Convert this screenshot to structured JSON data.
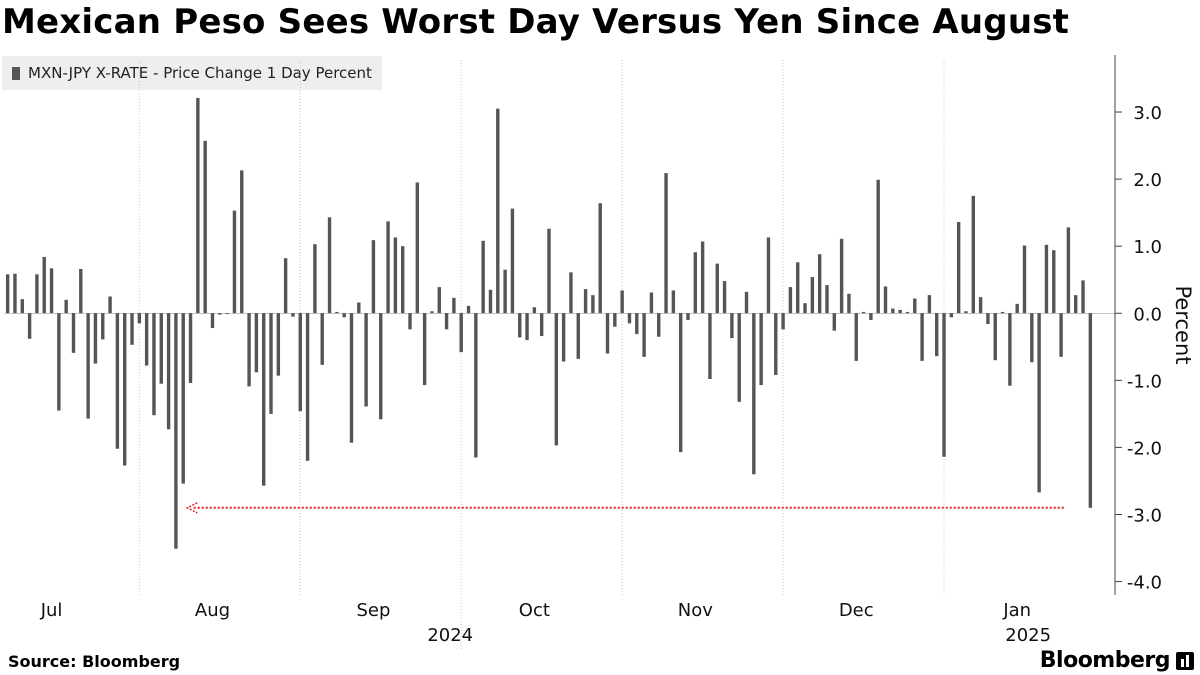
{
  "header": {
    "title": "Mexican Peso Sees Worst Day Versus Yen Since August"
  },
  "legend": {
    "label": "MXN-JPY X-RATE - Price Change 1 Day Percent"
  },
  "footer": {
    "source": "Source: Bloomberg",
    "brand": "Bloomberg"
  },
  "colors": {
    "bars": "#555555",
    "annotation": "#e02020",
    "axis": "#444444"
  },
  "chart_data": {
    "type": "bar",
    "title": "Mexican Peso Sees Worst Day Versus Yen Since August",
    "series": [
      {
        "name": "MXN-JPY X-RATE - Price Change 1 Day Percent",
        "values": [
          0.58,
          0.59,
          0.21,
          -0.38,
          0.58,
          0.84,
          0.67,
          -1.45,
          0.2,
          -0.59,
          0.66,
          -1.57,
          -0.75,
          -0.39,
          0.25,
          -2.02,
          -2.27,
          -0.47,
          -0.15,
          -0.78,
          -1.52,
          -1.05,
          -1.73,
          -3.51,
          -2.54,
          -1.04,
          3.21,
          2.57,
          -0.22,
          -0.02,
          0.0,
          1.53,
          2.13,
          -1.09,
          -0.88,
          -2.57,
          -1.5,
          -0.93,
          0.82,
          -0.05,
          -1.46,
          -2.2,
          1.03,
          -0.77,
          1.43,
          0.02,
          -0.06,
          -1.93,
          0.16,
          -1.39,
          1.09,
          -1.58,
          1.37,
          1.13,
          1.0,
          -0.24,
          1.95,
          -1.07,
          0.03,
          0.39,
          -0.24,
          0.23,
          -0.58,
          0.11,
          -2.15,
          1.08,
          0.35,
          3.05,
          0.65,
          1.56,
          -0.36,
          -0.4,
          0.09,
          -0.34,
          1.26,
          -1.97,
          -0.72,
          0.61,
          -0.68,
          0.36,
          0.27,
          1.64,
          -0.6,
          -0.2,
          0.34,
          -0.15,
          -0.31,
          -0.65,
          0.31,
          -0.35,
          2.09,
          0.34,
          -2.07,
          -0.1,
          0.91,
          1.07,
          -0.98,
          0.74,
          0.48,
          -0.37,
          -1.32,
          0.32,
          -2.4,
          -1.07,
          1.13,
          -0.92,
          -0.24,
          0.39,
          0.76,
          0.15,
          0.54,
          0.88,
          0.42,
          -0.26,
          1.11,
          0.29,
          -0.71,
          0.02,
          -0.1,
          1.99,
          0.4,
          0.07,
          0.05,
          0.02,
          0.22,
          -0.71,
          0.27,
          -0.64,
          -2.14,
          -0.06,
          1.36,
          0.03,
          1.75,
          0.24,
          -0.16,
          -0.7,
          0.02,
          -1.08,
          0.14,
          1.01,
          -0.73,
          -2.67,
          1.02,
          0.94,
          -0.65,
          1.28,
          0.27,
          0.49,
          -2.9
        ]
      }
    ],
    "x_labels": [
      {
        "label": "Jul",
        "index": 6.5
      },
      {
        "label": "Aug",
        "index": 28.5
      },
      {
        "label": "Sep",
        "index": 50.5
      },
      {
        "label": "Oct",
        "index": 72.5
      },
      {
        "label": "Nov",
        "index": 94.5
      },
      {
        "label": "Dec",
        "index": 116.5
      },
      {
        "label": "Jan",
        "index": 138.5
      }
    ],
    "x_year_labels": [
      {
        "label": "2024",
        "index": 61
      },
      {
        "label": "2025",
        "index": 140
      }
    ],
    "month_separators": [
      18.5,
      40.5,
      62.5,
      84.5,
      106.5,
      128.5
    ],
    "year_separators": [
      62.5
    ],
    "ylabel": "Percent",
    "ylim": [
      -4.2,
      3.85
    ],
    "yticks": [
      3.0,
      2.0,
      1.0,
      0.0,
      -1.0,
      -2.0,
      -3.0,
      -4.0
    ],
    "ytick_labels": [
      "3.0",
      "2.0",
      "1.0",
      "0.0",
      "-1.0",
      "-2.0",
      "-3.0",
      "-4.0"
    ],
    "grid": false,
    "legend_position": "top-left",
    "annotation": {
      "type": "dotted-arrow",
      "y": -2.9,
      "from_index": 146,
      "to_index": 24
    }
  }
}
